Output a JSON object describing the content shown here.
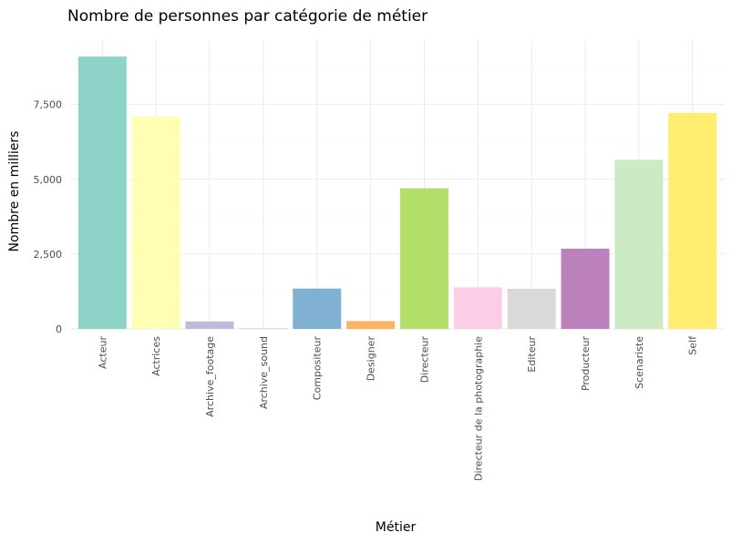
{
  "chart_data": {
    "type": "bar",
    "title": "Nombre de personnes par catégorie de métier",
    "xlabel": "Métier",
    "ylabel": "Nombre en milliers",
    "categories": [
      "Acteur",
      "Actrices",
      "Archive_footage",
      "Archive_sound",
      "Compositeur",
      "Designer",
      "Directeur",
      "Directeur de la photographie",
      "Editeur",
      "Producteur",
      "Scenariste",
      "Self"
    ],
    "values": [
      9100,
      7100,
      250,
      10,
      1350,
      260,
      4700,
      1390,
      1340,
      2680,
      5650,
      7220
    ],
    "ylim": [
      0,
      9650
    ],
    "yticks": [
      0,
      2500,
      5000,
      7500
    ],
    "ytick_labels": [
      "0",
      "2,500",
      "5,000",
      "7,500"
    ],
    "colors": [
      "#8dd3c7",
      "#ffffb3",
      "#bebada",
      "#fb8072",
      "#80b1d3",
      "#fdb462",
      "#b3de69",
      "#fccde5",
      "#d9d9d9",
      "#bc80bd",
      "#ccebc5",
      "#ffed6f"
    ],
    "grid": true,
    "legend": "none"
  }
}
